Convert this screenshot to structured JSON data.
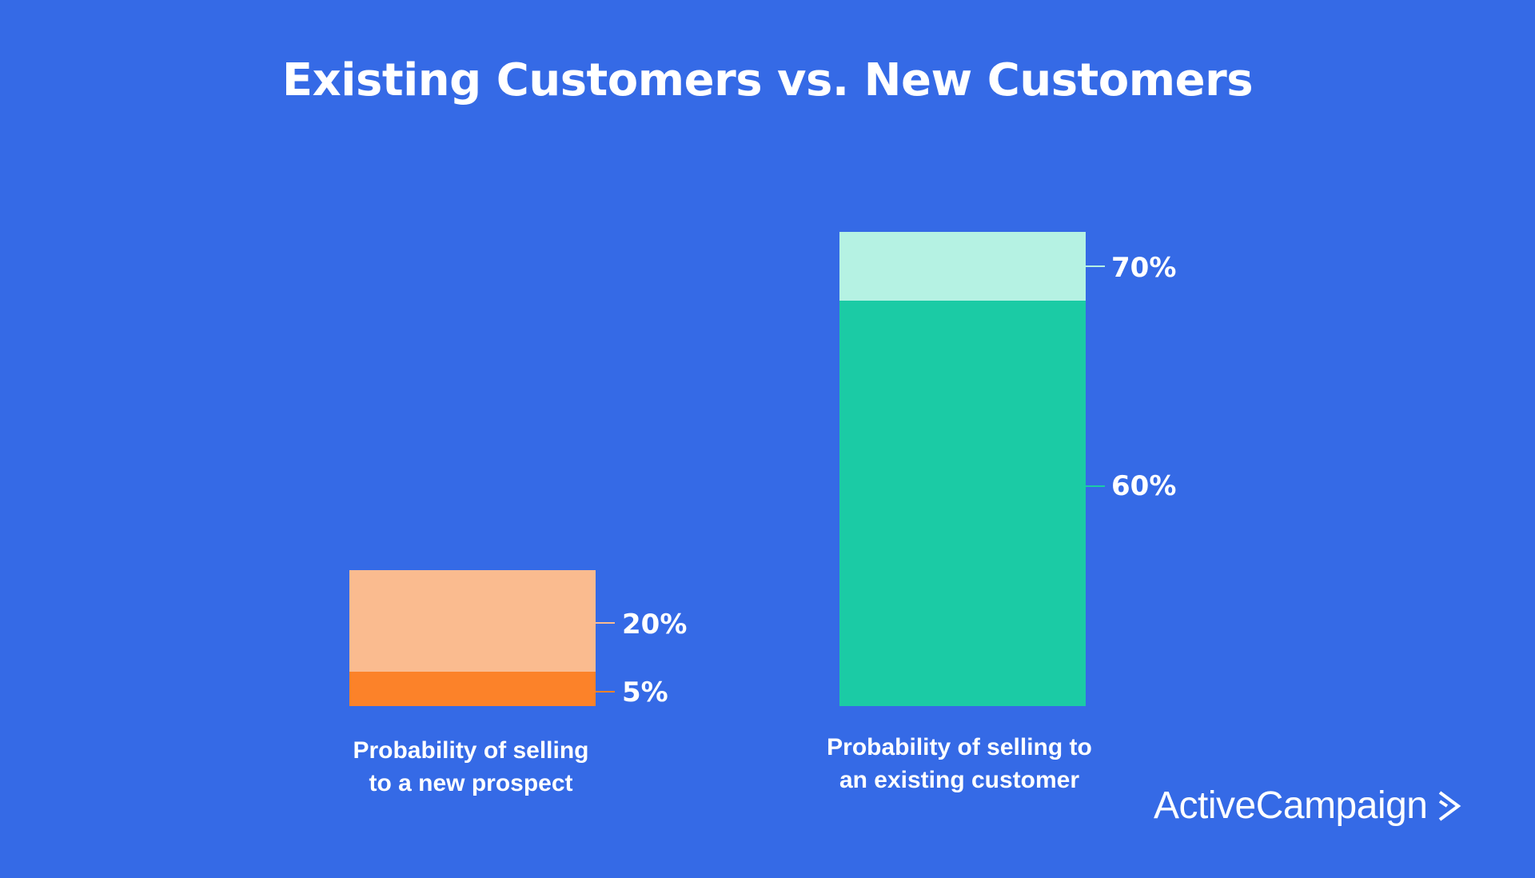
{
  "chart_data": {
    "type": "bar",
    "title": "Existing Customers vs. New Customers",
    "categories": [
      "Probability of selling to a new prospect",
      "Probability of selling to an existing customer"
    ],
    "category_lines": [
      [
        "Probability of selling",
        "to a new prospect"
      ],
      [
        "Probability of selling to",
        "an existing customer"
      ]
    ],
    "series": [
      {
        "values": [
          5,
          60
        ],
        "labels": [
          "5%",
          "60%"
        ],
        "colors": [
          "#fc8229",
          "#1bcba5"
        ]
      },
      {
        "values": [
          20,
          70
        ],
        "labels": [
          "20%",
          "70%"
        ],
        "colors": [
          "#fabb8f",
          "#b5f2e3"
        ]
      }
    ],
    "range_labels": true,
    "grid": false,
    "background": "#356ae6"
  },
  "branding": {
    "logo_text": "ActiveCampaign",
    "logo_icon": "chevron-right-icon"
  }
}
